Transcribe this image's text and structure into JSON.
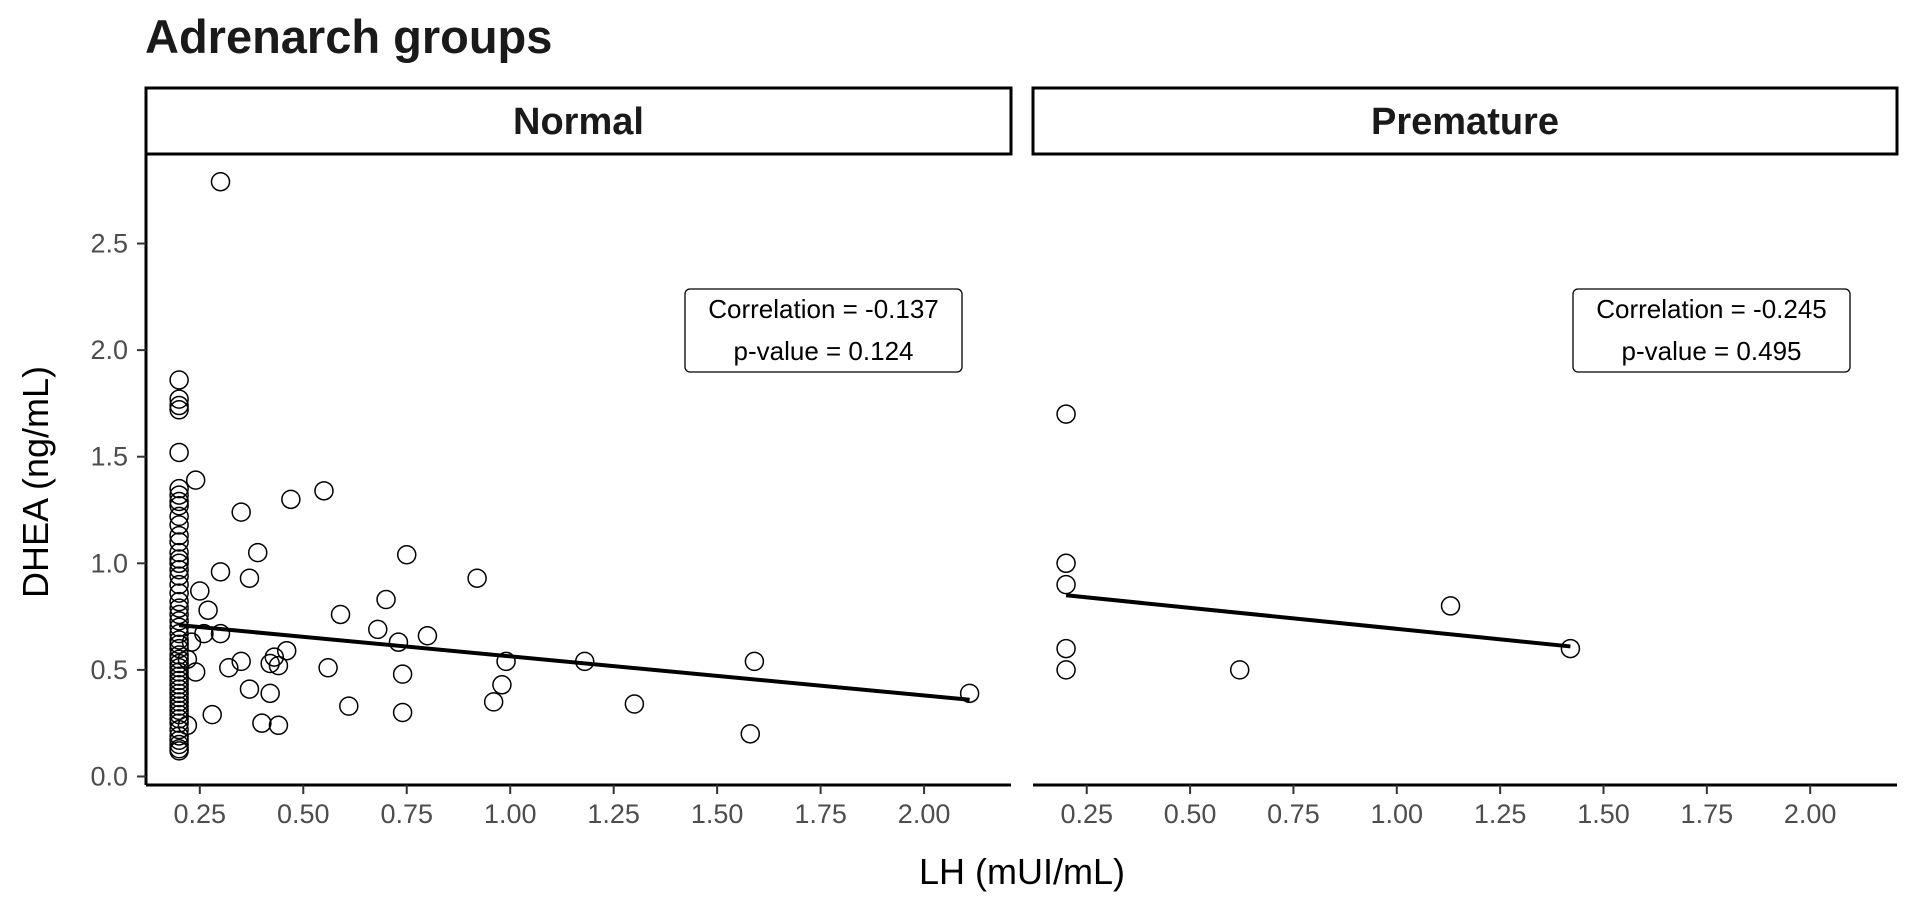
{
  "chart_data": {
    "type": "scatter",
    "title": "Adrenarch groups",
    "xlabel": "LH (mUI/mL)",
    "ylabel": "DHEA (ng/mL)",
    "xlim": [
      0.12,
      2.21
    ],
    "ylim": [
      -0.04,
      2.92
    ],
    "xticks": [
      0.25,
      0.5,
      0.75,
      1.0,
      1.25,
      1.5,
      1.75,
      2.0
    ],
    "xtick_labels": [
      "0.25",
      "0.50",
      "0.75",
      "1.00",
      "1.25",
      "1.50",
      "1.75",
      "2.00"
    ],
    "yticks": [
      0.0,
      0.5,
      1.0,
      1.5,
      2.0,
      2.5
    ],
    "ytick_labels": [
      "0.0",
      "0.5",
      "1.0",
      "1.5",
      "2.0",
      "2.5"
    ],
    "grid": false,
    "marker": "open-circle",
    "panels": [
      {
        "name": "Normal",
        "annotation": [
          "Correlation = -0.137",
          "p-value = 0.124"
        ],
        "fit_line": [
          [
            0.2,
            0.71
          ],
          [
            2.11,
            0.36
          ]
        ],
        "points": [
          [
            0.2,
            1.86
          ],
          [
            0.2,
            1.77
          ],
          [
            0.2,
            1.74
          ],
          [
            0.2,
            1.72
          ],
          [
            0.2,
            1.52
          ],
          [
            0.2,
            1.35
          ],
          [
            0.2,
            1.32
          ],
          [
            0.2,
            1.29
          ],
          [
            0.2,
            1.27
          ],
          [
            0.2,
            1.22
          ],
          [
            0.2,
            1.18
          ],
          [
            0.2,
            1.13
          ],
          [
            0.2,
            1.1
          ],
          [
            0.2,
            1.05
          ],
          [
            0.2,
            1.02
          ],
          [
            0.2,
            1.0
          ],
          [
            0.2,
            0.97
          ],
          [
            0.2,
            0.94
          ],
          [
            0.2,
            0.9
          ],
          [
            0.2,
            0.86
          ],
          [
            0.2,
            0.82
          ],
          [
            0.2,
            0.79
          ],
          [
            0.2,
            0.76
          ],
          [
            0.2,
            0.73
          ],
          [
            0.2,
            0.7
          ],
          [
            0.2,
            0.67
          ],
          [
            0.2,
            0.64
          ],
          [
            0.2,
            0.62
          ],
          [
            0.2,
            0.6
          ],
          [
            0.2,
            0.57
          ],
          [
            0.2,
            0.55
          ],
          [
            0.2,
            0.53
          ],
          [
            0.2,
            0.51
          ],
          [
            0.2,
            0.49
          ],
          [
            0.2,
            0.47
          ],
          [
            0.2,
            0.45
          ],
          [
            0.2,
            0.43
          ],
          [
            0.2,
            0.41
          ],
          [
            0.2,
            0.39
          ],
          [
            0.2,
            0.37
          ],
          [
            0.2,
            0.35
          ],
          [
            0.2,
            0.33
          ],
          [
            0.2,
            0.31
          ],
          [
            0.2,
            0.29
          ],
          [
            0.2,
            0.27
          ],
          [
            0.2,
            0.25
          ],
          [
            0.2,
            0.22
          ],
          [
            0.2,
            0.19
          ],
          [
            0.2,
            0.17
          ],
          [
            0.2,
            0.15
          ],
          [
            0.2,
            0.13
          ],
          [
            0.2,
            0.12
          ],
          [
            0.22,
            0.55
          ],
          [
            0.22,
            0.24
          ],
          [
            0.23,
            0.63
          ],
          [
            0.24,
            1.39
          ],
          [
            0.24,
            0.49
          ],
          [
            0.25,
            0.87
          ],
          [
            0.26,
            0.67
          ],
          [
            0.27,
            0.78
          ],
          [
            0.28,
            0.29
          ],
          [
            0.3,
            2.79
          ],
          [
            0.3,
            0.96
          ],
          [
            0.3,
            0.67
          ],
          [
            0.32,
            0.51
          ],
          [
            0.35,
            1.24
          ],
          [
            0.35,
            0.54
          ],
          [
            0.37,
            0.93
          ],
          [
            0.37,
            0.41
          ],
          [
            0.39,
            1.05
          ],
          [
            0.4,
            0.25
          ],
          [
            0.42,
            0.53
          ],
          [
            0.42,
            0.39
          ],
          [
            0.43,
            0.56
          ],
          [
            0.44,
            0.52
          ],
          [
            0.44,
            0.24
          ],
          [
            0.46,
            0.59
          ],
          [
            0.47,
            1.3
          ],
          [
            0.55,
            1.34
          ],
          [
            0.56,
            0.51
          ],
          [
            0.59,
            0.76
          ],
          [
            0.61,
            0.33
          ],
          [
            0.68,
            0.69
          ],
          [
            0.7,
            0.83
          ],
          [
            0.73,
            0.63
          ],
          [
            0.74,
            0.48
          ],
          [
            0.74,
            0.3
          ],
          [
            0.75,
            1.04
          ],
          [
            0.8,
            0.66
          ],
          [
            0.92,
            0.93
          ],
          [
            0.96,
            0.35
          ],
          [
            0.98,
            0.43
          ],
          [
            0.99,
            0.54
          ],
          [
            1.18,
            0.54
          ],
          [
            1.3,
            0.34
          ],
          [
            1.58,
            0.2
          ],
          [
            1.59,
            0.54
          ],
          [
            2.11,
            0.39
          ]
        ]
      },
      {
        "name": "Premature",
        "annotation": [
          "Correlation = -0.245",
          "p-value = 0.495"
        ],
        "fit_line": [
          [
            0.2,
            0.85
          ],
          [
            1.42,
            0.61
          ]
        ],
        "points": [
          [
            0.2,
            1.7
          ],
          [
            0.2,
            1.0
          ],
          [
            0.2,
            0.9
          ],
          [
            0.2,
            0.6
          ],
          [
            0.2,
            0.5
          ],
          [
            0.62,
            0.5
          ],
          [
            1.13,
            0.8
          ],
          [
            1.42,
            0.6
          ]
        ]
      }
    ]
  }
}
